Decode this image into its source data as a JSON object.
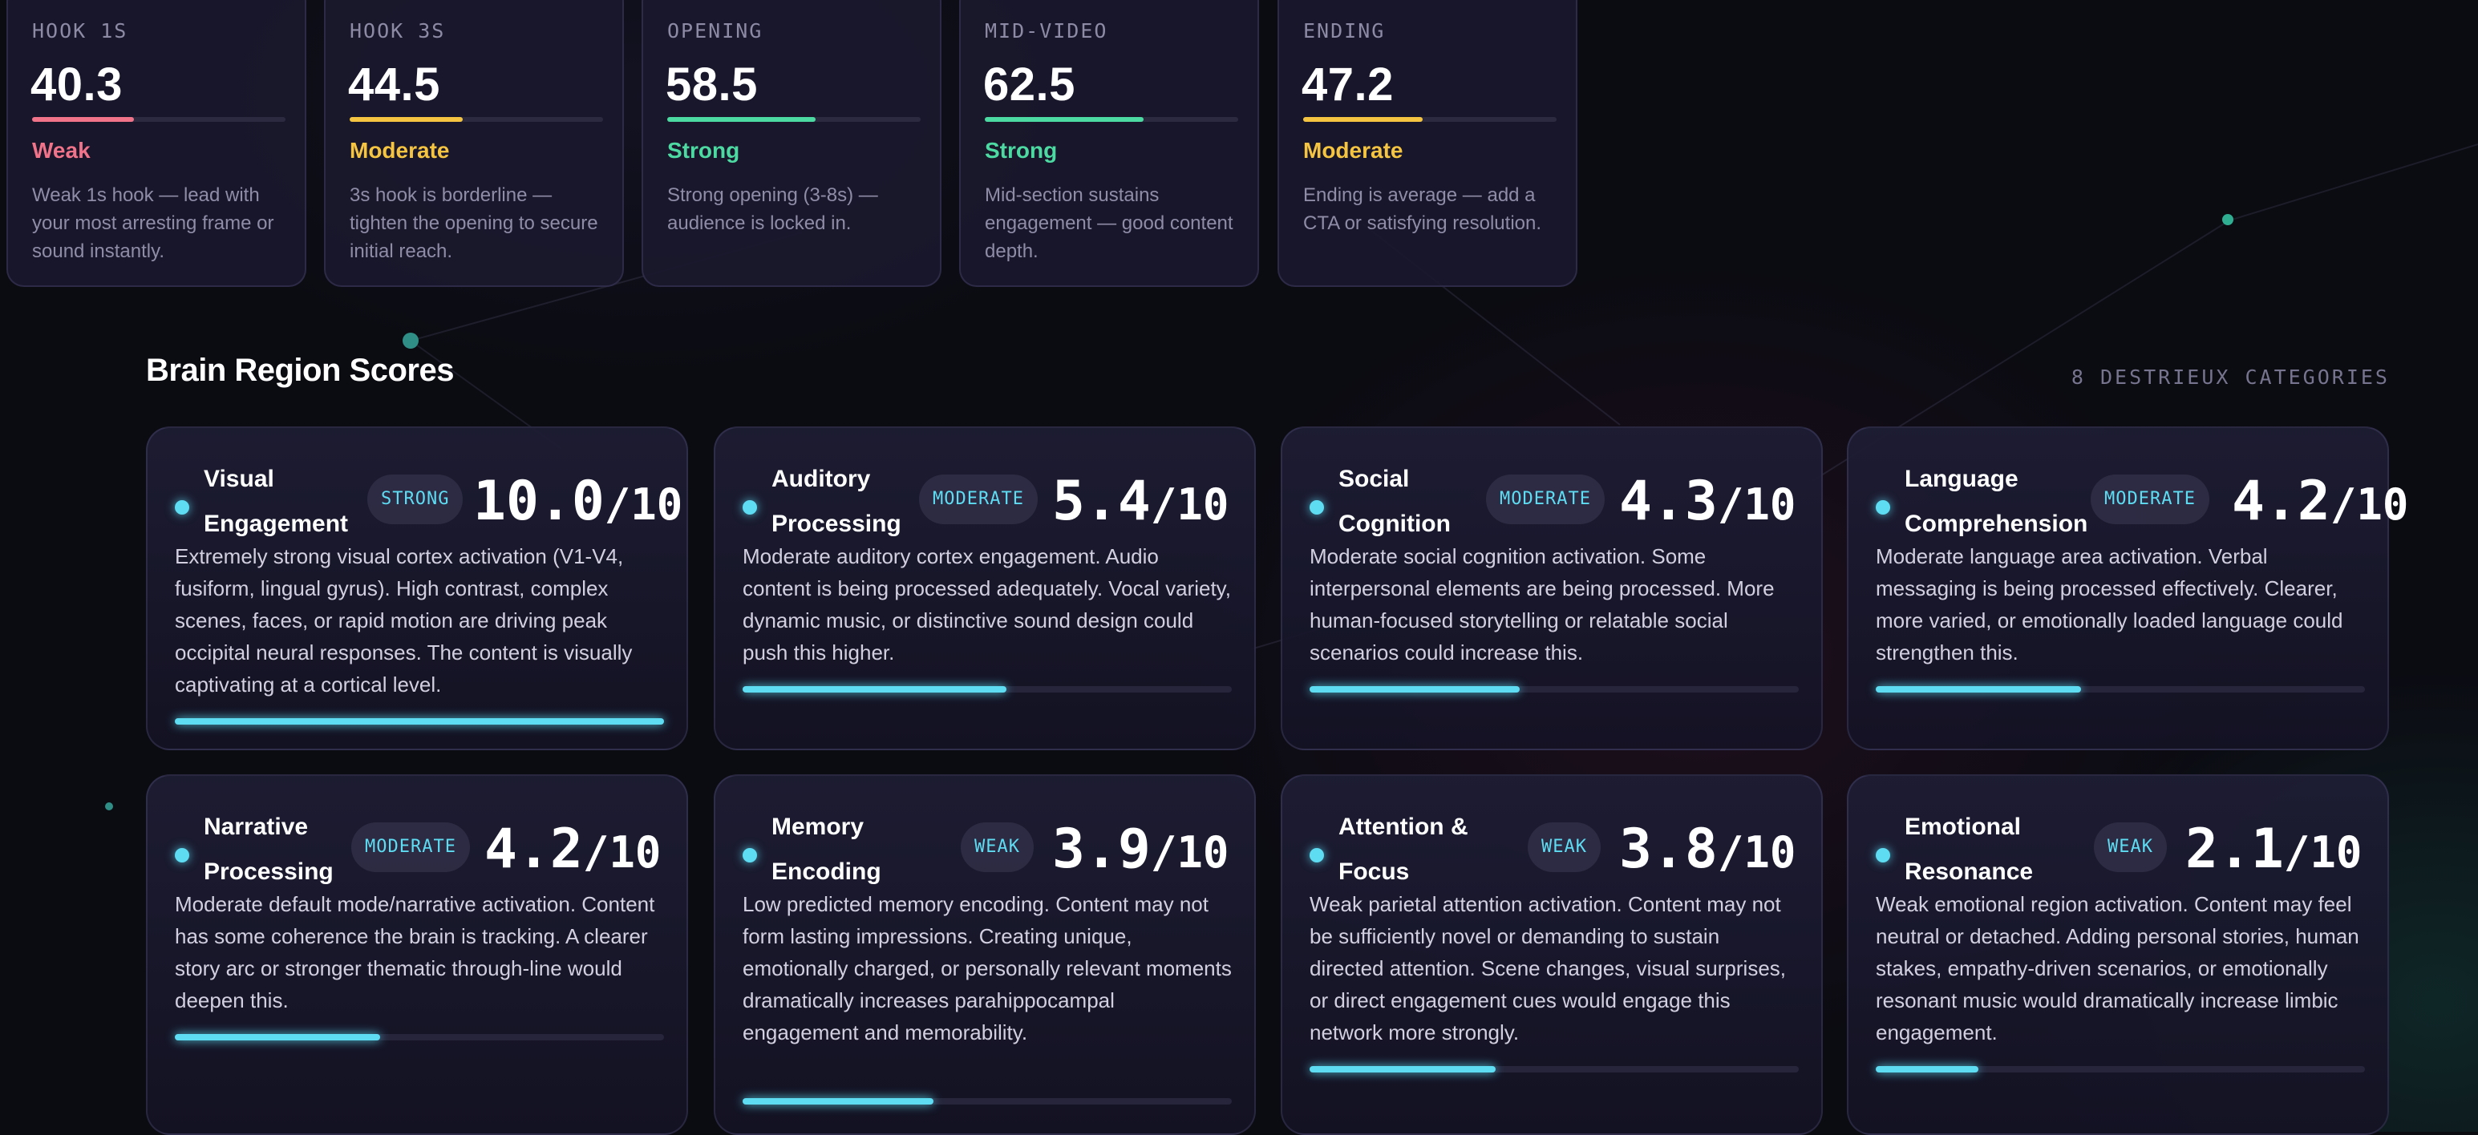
{
  "colors": {
    "weak": "#f0738a",
    "moderate": "#f5c542",
    "strong": "#4dd9a2",
    "accent": "#5ddcf2"
  },
  "timeline": [
    {
      "label": "HOOK 1S",
      "value": "40.3",
      "level": 0.403,
      "rating": "Weak",
      "rating_key": "weak",
      "description": "Weak 1s hook — lead with your most arresting frame or sound instantly."
    },
    {
      "label": "HOOK 3S",
      "value": "44.5",
      "level": 0.445,
      "rating": "Moderate",
      "rating_key": "moderate",
      "description": "3s hook is borderline — tighten the opening to secure initial reach."
    },
    {
      "label": "OPENING",
      "value": "58.5",
      "level": 0.585,
      "rating": "Strong",
      "rating_key": "strong",
      "description": "Strong opening (3-8s) — audience is locked in."
    },
    {
      "label": "MID-VIDEO",
      "value": "62.5",
      "level": 0.625,
      "rating": "Strong",
      "rating_key": "strong",
      "description": "Mid-section sustains engagement — good content depth."
    },
    {
      "label": "ENDING",
      "value": "47.2",
      "level": 0.472,
      "rating": "Moderate",
      "rating_key": "moderate",
      "description": "Ending is average — add a CTA or satisfying resolution."
    }
  ],
  "section": {
    "title": "Brain Region Scores",
    "meta": "8 DESTRIEUX CATEGORIES"
  },
  "regions": [
    {
      "title": "Visual Engagement",
      "badge": "STRONG",
      "score": "10.0",
      "max": "/10",
      "level": 1.0,
      "description": "Extremely strong visual cortex activation (V1-V4, fusiform, lingual gyrus). High contrast, complex scenes, faces, or rapid motion are driving peak occipital neural responses. The content is visually captivating at a cortical level."
    },
    {
      "title": "Auditory Processing",
      "badge": "MODERATE",
      "score": "5.4",
      "max": "/10",
      "level": 0.54,
      "description": "Moderate auditory cortex engagement. Audio content is being processed adequately. Vocal variety, dynamic music, or distinctive sound design could push this higher."
    },
    {
      "title": "Social Cognition",
      "badge": "MODERATE",
      "score": "4.3",
      "max": "/10",
      "level": 0.43,
      "description": "Moderate social cognition activation. Some interpersonal elements are being processed. More human-focused storytelling or relatable social scenarios could increase this."
    },
    {
      "title": "Language Comprehension",
      "badge": "MODERATE",
      "score": "4.2",
      "max": "/10",
      "level": 0.42,
      "description": "Moderate language area activation. Verbal messaging is being processed effectively. Clearer, more varied, or emotionally loaded language could strengthen this."
    },
    {
      "title": "Narrative Processing",
      "badge": "MODERATE",
      "score": "4.2",
      "max": "/10",
      "level": 0.42,
      "description": "Moderate default mode/narrative activation. Content has some coherence the brain is tracking. A clearer story arc or stronger thematic through-line would deepen this."
    },
    {
      "title": "Memory Encoding",
      "badge": "WEAK",
      "score": "3.9",
      "max": "/10",
      "level": 0.39,
      "description": "Low predicted memory encoding. Content may not form lasting impressions. Creating unique, emotionally charged, or personally relevant moments dramatically increases parahippocampal engagement and memorability."
    },
    {
      "title": "Attention & Focus",
      "badge": "WEAK",
      "score": "3.8",
      "max": "/10",
      "level": 0.38,
      "description": "Weak parietal attention activation. Content may not be sufficiently novel or demanding to sustain directed attention. Scene changes, visual surprises, or direct engagement cues would engage this network more strongly."
    },
    {
      "title": "Emotional Resonance",
      "badge": "WEAK",
      "score": "2.1",
      "max": "/10",
      "level": 0.21,
      "description": "Weak emotional region activation. Content may feel neutral or detached. Adding personal stories, human stakes, empathy-driven scenarios, or emotionally resonant music would dramatically increase limbic engagement."
    }
  ]
}
